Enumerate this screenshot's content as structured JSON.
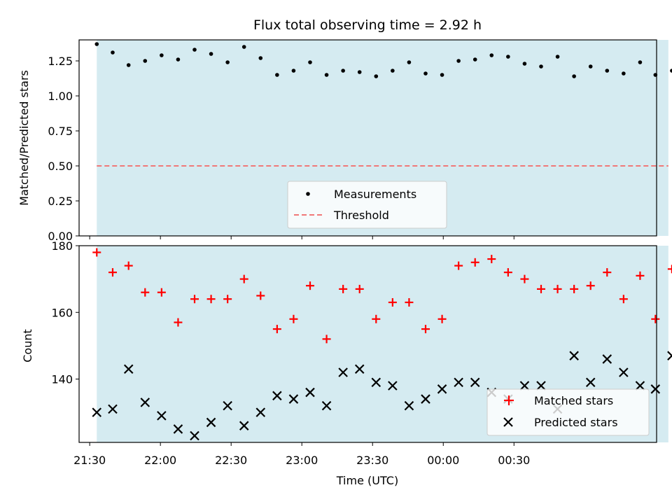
{
  "chart_data": [
    {
      "type": "scatter",
      "title": "Flux total observing time = 2.92 h",
      "xlabel": "",
      "ylabel": "Matched/Predicted stars",
      "ylim": [
        0,
        1.4
      ],
      "yticks": [
        0.0,
        0.25,
        0.5,
        0.75,
        1.0,
        1.25
      ],
      "ytick_labels": [
        "0.00",
        "0.25",
        "0.50",
        "0.75",
        "1.00",
        "1.25"
      ],
      "xrange_minutes": [
        -9,
        481
      ],
      "observing_window_minutes": [
        6,
        491
      ],
      "shade_color": "#d5ebf1",
      "threshold": 0.5,
      "threshold_color": "#f07878",
      "legend_position": "lower center",
      "legend": [
        "Measurements",
        "Threshold"
      ],
      "series": [
        {
          "name": "Measurements",
          "marker": "dot",
          "color": "#000000",
          "x_minutes": [
            6,
            19.5,
            33,
            47,
            61,
            75,
            89,
            103,
            117,
            131,
            145,
            159,
            173,
            187,
            201,
            215,
            229,
            243,
            257,
            271,
            285,
            299,
            313,
            327,
            341,
            355,
            369,
            383,
            397,
            411,
            425,
            439,
            453,
            467,
            480,
            494
          ],
          "y": [
            1.37,
            1.31,
            1.22,
            1.25,
            1.29,
            1.26,
            1.33,
            1.3,
            1.24,
            1.35,
            1.27,
            1.15,
            1.18,
            1.24,
            1.15,
            1.18,
            1.17,
            1.14,
            1.18,
            1.24,
            1.16,
            1.15,
            1.25,
            1.26,
            1.29,
            1.28,
            1.23,
            1.21,
            1.28,
            1.14,
            1.21,
            1.18,
            1.16,
            1.24,
            1.15,
            1.18
          ]
        }
      ]
    },
    {
      "type": "scatter",
      "title": "",
      "xlabel": "Time (UTC)",
      "ylabel": "Count",
      "ylim": [
        121,
        180
      ],
      "yticks": [
        140,
        160,
        180
      ],
      "ytick_labels": [
        "140",
        "160",
        "180"
      ],
      "xticks_minutes": [
        0,
        30,
        60,
        90,
        120,
        150,
        180,
        210,
        240,
        270,
        300
      ],
      "xtick_labels": [
        "21:30",
        "22:00",
        "22:30",
        "23:00",
        "23:30",
        "00:00",
        "00:30"
      ],
      "xtick_label_minutes": [
        0,
        60,
        120,
        180,
        240,
        300,
        360
      ],
      "legend_position": "lower right",
      "legend": [
        "Matched stars",
        "Predicted stars"
      ],
      "series": [
        {
          "name": "Matched stars",
          "marker": "plus",
          "color": "#ff0000",
          "x_minutes": [
            6,
            19.5,
            33,
            47,
            61,
            75,
            89,
            103,
            117,
            131,
            145,
            159,
            173,
            187,
            201,
            215,
            229,
            243,
            257,
            271,
            285,
            299,
            313,
            327,
            341,
            355,
            369,
            383,
            397,
            411,
            425,
            439,
            453,
            467,
            480,
            494
          ],
          "y": [
            178,
            172,
            174,
            166,
            166,
            157,
            164,
            164,
            164,
            170,
            165,
            155,
            158,
            168,
            152,
            167,
            167,
            158,
            163,
            163,
            155,
            158,
            174,
            175,
            176,
            172,
            170,
            167,
            167,
            167,
            168,
            172,
            164,
            171,
            158,
            173
          ]
        },
        {
          "name": "Predicted stars",
          "marker": "x",
          "color": "#000000",
          "x_minutes": [
            6,
            19.5,
            33,
            47,
            61,
            75,
            89,
            103,
            117,
            131,
            145,
            159,
            173,
            187,
            201,
            215,
            229,
            243,
            257,
            271,
            285,
            299,
            313,
            327,
            341,
            355,
            369,
            383,
            397,
            411,
            425,
            439,
            453,
            467,
            480,
            494
          ],
          "y": [
            130,
            131,
            143,
            133,
            129,
            125,
            123,
            127,
            132,
            126,
            130,
            135,
            134,
            136,
            132,
            142,
            143,
            139,
            138,
            132,
            134,
            137,
            139,
            139,
            136,
            134,
            138,
            138,
            131,
            147,
            139,
            146,
            142,
            138,
            137,
            147
          ]
        }
      ]
    }
  ]
}
